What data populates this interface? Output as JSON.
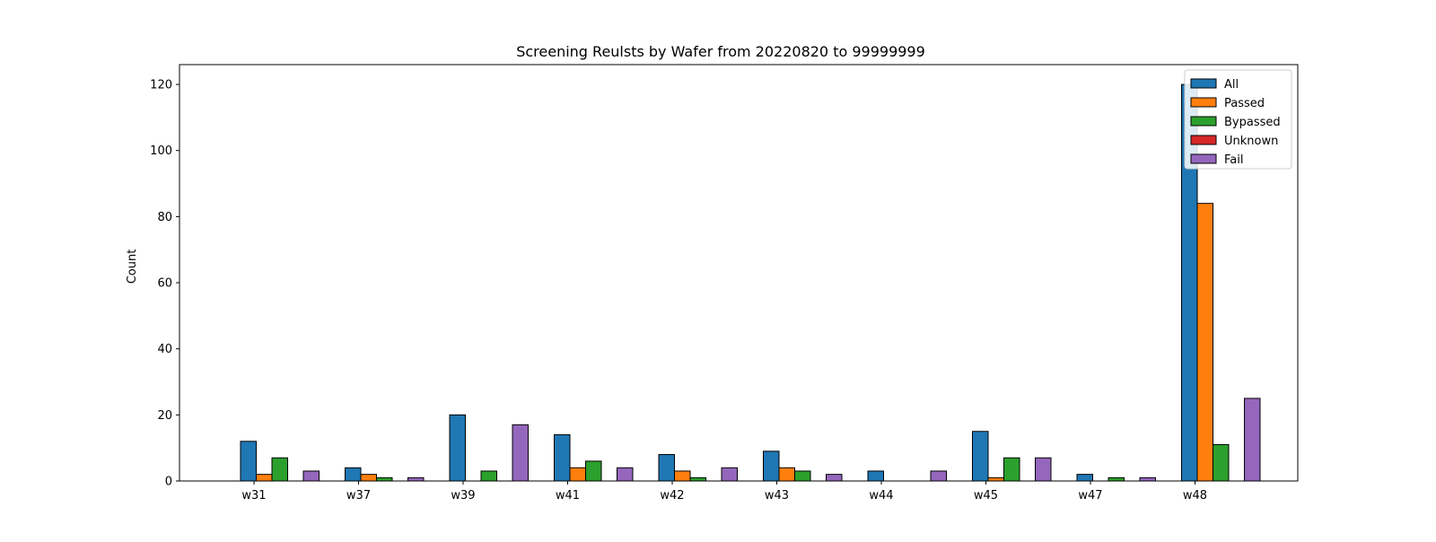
{
  "chart_data": {
    "type": "bar",
    "title": "Screening Reulsts by Wafer from 20220820 to 99999999",
    "xlabel": "",
    "ylabel": "Count",
    "categories": [
      "w31",
      "w37",
      "w39",
      "w41",
      "w42",
      "w43",
      "w44",
      "w45",
      "w47",
      "w48"
    ],
    "ylim": [
      0,
      126
    ],
    "yticks": [
      0,
      20,
      40,
      60,
      80,
      100,
      120
    ],
    "grid": false,
    "legend_position": "top-right",
    "series": [
      {
        "name": "All",
        "color": "#1f77b4",
        "values": [
          12,
          4,
          20,
          14,
          8,
          9,
          3,
          15,
          2,
          120
        ]
      },
      {
        "name": "Passed",
        "color": "#ff7f0e",
        "values": [
          2,
          2,
          0,
          4,
          3,
          4,
          0,
          1,
          0,
          84
        ]
      },
      {
        "name": "Bypassed",
        "color": "#2ca02c",
        "values": [
          7,
          1,
          3,
          6,
          1,
          3,
          0,
          7,
          1,
          11
        ]
      },
      {
        "name": "Unknown",
        "color": "#d62728",
        "values": [
          0,
          0,
          0,
          0,
          0,
          0,
          0,
          0,
          0,
          0
        ]
      },
      {
        "name": "Fail",
        "color": "#9467bd",
        "values": [
          3,
          1,
          17,
          4,
          4,
          2,
          3,
          7,
          1,
          25
        ]
      }
    ]
  }
}
